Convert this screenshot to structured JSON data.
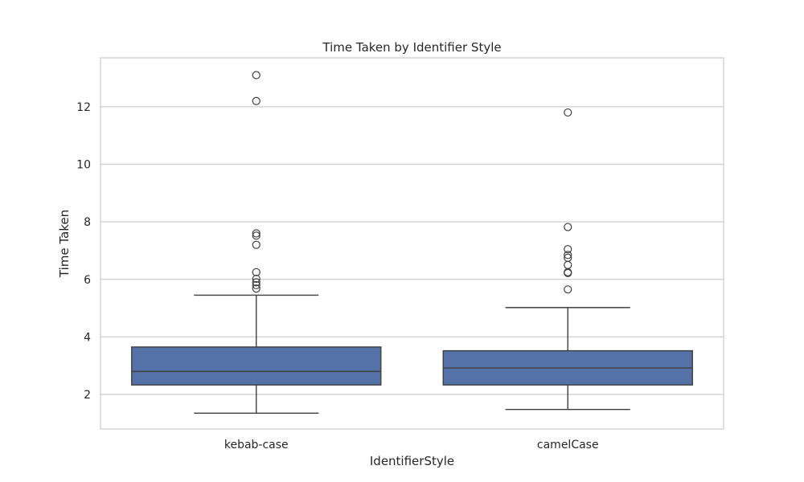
{
  "chart_data": {
    "type": "box",
    "title": "Time Taken by Identifier Style",
    "xlabel": "IdentifierStyle",
    "ylabel": "Time Taken",
    "ylim": [
      0.8,
      13.7
    ],
    "yticks": [
      2,
      4,
      6,
      8,
      10,
      12
    ],
    "ytick_labels": [
      "2",
      "4",
      "6",
      "8",
      "10",
      "12"
    ],
    "grid": true,
    "legend": "none",
    "box_color": "#5572a8",
    "categories": [
      "kebab-case",
      "camelCase"
    ],
    "boxes": [
      {
        "category": "kebab-case",
        "whisker_low": 1.35,
        "q1": 2.33,
        "median": 2.8,
        "q3": 3.65,
        "whisker_high": 5.45,
        "outliers": [
          5.68,
          5.8,
          5.9,
          6.02,
          6.25,
          7.2,
          7.52,
          7.6,
          12.2,
          13.1
        ]
      },
      {
        "category": "camelCase",
        "whisker_low": 1.48,
        "q1": 2.33,
        "median": 2.92,
        "q3": 3.52,
        "whisker_high": 5.02,
        "outliers": [
          5.65,
          6.22,
          6.25,
          6.5,
          6.75,
          6.85,
          7.05,
          7.82,
          11.8
        ]
      }
    ]
  }
}
